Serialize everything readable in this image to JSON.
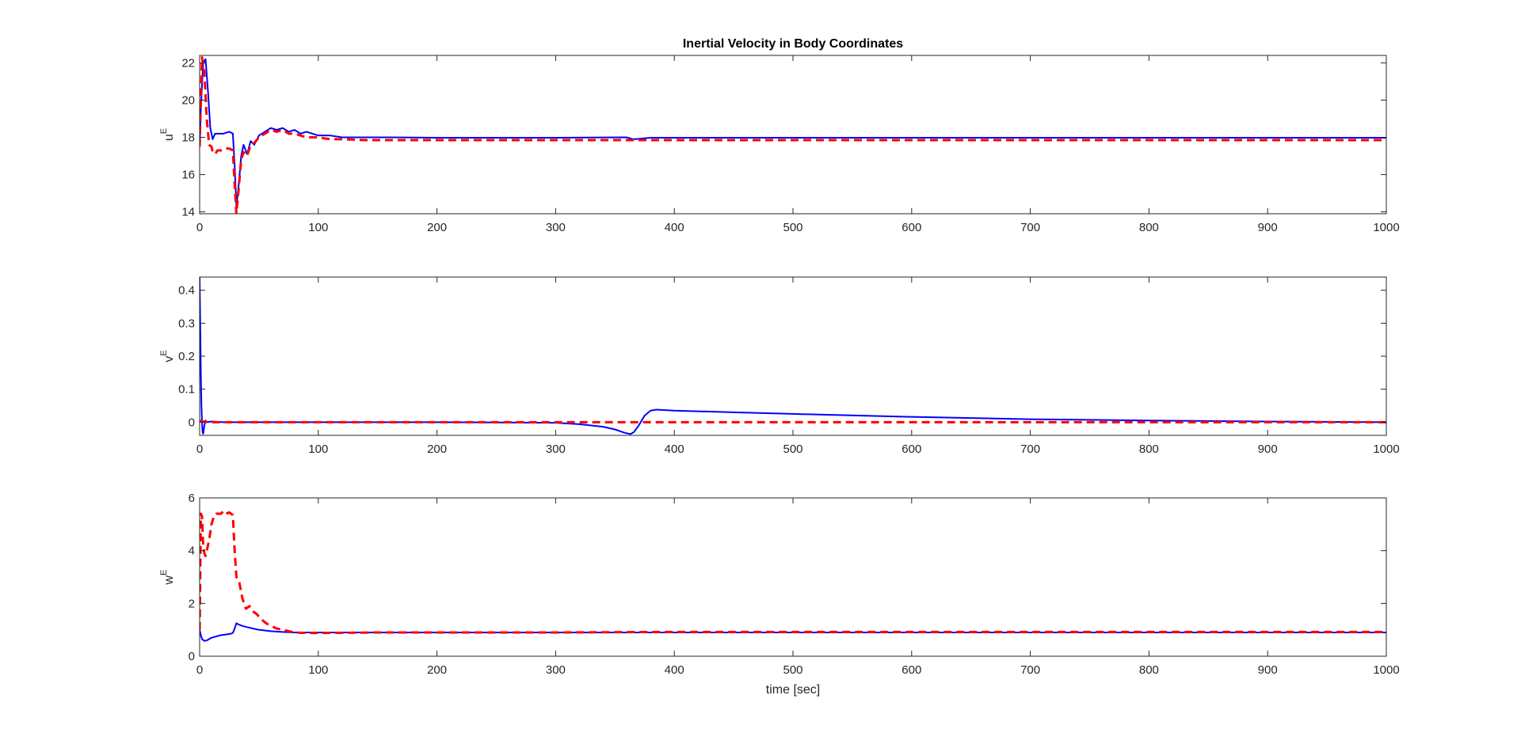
{
  "chart_data": [
    {
      "type": "line",
      "title": "Inertial Velocity in Body Coordinates",
      "ylabel": "u",
      "ylabel_sup": "E",
      "xlabel": "",
      "xlim": [
        0,
        1000
      ],
      "ylim": [
        13.9,
        22.4
      ],
      "xticks": [
        0,
        100,
        200,
        300,
        400,
        500,
        600,
        700,
        800,
        900,
        1000
      ],
      "yticks": [
        14,
        16,
        18,
        20,
        22
      ],
      "grid": false,
      "series": [
        {
          "color": "#0000ff",
          "style": "solid",
          "x": [
            0,
            1,
            3,
            5,
            7,
            9,
            11,
            13,
            16,
            20,
            25,
            28,
            29.5,
            31,
            33,
            35,
            37,
            40,
            43,
            46,
            50,
            55,
            60,
            65,
            70,
            75,
            80,
            85,
            90,
            100,
            110,
            120,
            140,
            160,
            200,
            300,
            360,
            365,
            370,
            380,
            400,
            500,
            600,
            700,
            800,
            900,
            1000
          ],
          "y": [
            17.5,
            19.5,
            22.0,
            22.2,
            20.5,
            18.5,
            17.9,
            18.2,
            18.2,
            18.2,
            18.3,
            18.2,
            16.5,
            14.3,
            15.5,
            17.0,
            17.6,
            17.1,
            17.8,
            17.6,
            18.1,
            18.3,
            18.5,
            18.4,
            18.5,
            18.3,
            18.4,
            18.2,
            18.3,
            18.1,
            18.1,
            18.0,
            18.0,
            18.0,
            17.98,
            17.98,
            18.0,
            17.9,
            17.92,
            17.98,
            17.98,
            17.98,
            17.98,
            17.98,
            17.98,
            17.98,
            17.98
          ]
        },
        {
          "color": "#ff0000",
          "style": "dashed",
          "x": [
            0,
            1,
            2,
            4,
            6,
            8,
            10,
            11,
            13,
            15,
            18,
            21,
            25,
            28,
            29.5,
            31,
            33,
            35,
            37,
            40,
            43,
            46,
            50,
            55,
            60,
            65,
            70,
            75,
            80,
            90,
            100,
            110,
            120,
            140,
            200,
            300,
            400,
            500,
            600,
            700,
            800,
            900,
            1000
          ],
          "y": [
            17.5,
            20.0,
            22.3,
            21.5,
            19.0,
            17.6,
            17.5,
            17.2,
            17.1,
            17.3,
            17.3,
            17.4,
            17.4,
            17.3,
            15.5,
            13.9,
            15.3,
            16.8,
            17.2,
            17.0,
            17.6,
            17.7,
            18.0,
            18.2,
            18.4,
            18.3,
            18.4,
            18.2,
            18.2,
            18.0,
            18.0,
            17.9,
            17.9,
            17.85,
            17.85,
            17.85,
            17.85,
            17.85,
            17.85,
            17.85,
            17.85,
            17.85,
            17.85
          ]
        }
      ]
    },
    {
      "type": "line",
      "title": "",
      "ylabel": "v",
      "ylabel_sup": "E",
      "xlabel": "",
      "xlim": [
        0,
        1000
      ],
      "ylim": [
        -0.04,
        0.44
      ],
      "xticks": [
        0,
        100,
        200,
        300,
        400,
        500,
        600,
        700,
        800,
        900,
        1000
      ],
      "yticks": [
        0,
        0.1,
        0.2,
        0.3,
        0.4
      ],
      "grid": false,
      "series": [
        {
          "color": "#0000ff",
          "style": "solid",
          "x": [
            0,
            0.5,
            1,
            1.5,
            2,
            2.5,
            3,
            4,
            5,
            6,
            8,
            10,
            20,
            50,
            100,
            200,
            300,
            320,
            340,
            350,
            358,
            363,
            366,
            370,
            375,
            380,
            385,
            400,
            450,
            500,
            600,
            700,
            800,
            900,
            1000
          ],
          "y": [
            0.44,
            0.3,
            0.15,
            0.05,
            0.0,
            -0.03,
            -0.035,
            -0.01,
            0.005,
            0.0,
            0.001,
            0.002,
            0.0,
            0.0,
            0.0,
            0.0,
            -0.002,
            -0.006,
            -0.014,
            -0.022,
            -0.032,
            -0.036,
            -0.03,
            -0.01,
            0.02,
            0.035,
            0.038,
            0.035,
            0.03,
            0.025,
            0.016,
            0.009,
            0.005,
            0.002,
            0.0
          ]
        },
        {
          "color": "#ff0000",
          "style": "dashed",
          "x": [
            0,
            1,
            2,
            3,
            5,
            10,
            20,
            100,
            300,
            500,
            700,
            900,
            1000
          ],
          "y": [
            0.002,
            0.004,
            0.003,
            0.002,
            0.001,
            0.0,
            0.0,
            0.0,
            0.0,
            0.0,
            0.0,
            0.0,
            0.0
          ]
        }
      ]
    },
    {
      "type": "line",
      "title": "",
      "ylabel": "w",
      "ylabel_sup": "E",
      "xlabel": "time [sec]",
      "xlim": [
        0,
        1000
      ],
      "ylim": [
        0,
        6
      ],
      "xticks": [
        0,
        100,
        200,
        300,
        400,
        500,
        600,
        700,
        800,
        900,
        1000
      ],
      "yticks": [
        0,
        2,
        4,
        6
      ],
      "grid": false,
      "series": [
        {
          "color": "#0000ff",
          "style": "solid",
          "x": [
            0,
            1,
            2,
            4,
            6,
            8,
            10,
            14,
            18,
            22,
            26,
            28,
            29.5,
            31,
            33,
            36,
            40,
            45,
            50,
            60,
            70,
            80,
            90,
            100,
            150,
            200,
            300,
            400,
            500,
            600,
            700,
            800,
            900,
            1000
          ],
          "y": [
            1.0,
            0.8,
            0.65,
            0.58,
            0.6,
            0.65,
            0.7,
            0.75,
            0.8,
            0.82,
            0.85,
            0.88,
            1.05,
            1.25,
            1.2,
            1.15,
            1.1,
            1.05,
            1.0,
            0.95,
            0.92,
            0.9,
            0.9,
            0.9,
            0.9,
            0.9,
            0.9,
            0.9,
            0.9,
            0.9,
            0.9,
            0.9,
            0.9,
            0.9
          ]
        },
        {
          "color": "#ff0000",
          "style": "dashed",
          "x": [
            0,
            0.5,
            1,
            2,
            3,
            4,
            5,
            6,
            8,
            10,
            12,
            14,
            16,
            18,
            20,
            22,
            25,
            28,
            29.5,
            31,
            33,
            36,
            39,
            42,
            45,
            48,
            52,
            56,
            60,
            65,
            70,
            75,
            80,
            90,
            100,
            150,
            200,
            300,
            400,
            500,
            600,
            700,
            800,
            900,
            1000
          ],
          "y": [
            1.0,
            3.0,
            5.4,
            5.3,
            4.2,
            3.9,
            3.8,
            4.0,
            4.4,
            5.0,
            5.3,
            5.4,
            5.4,
            5.4,
            5.5,
            5.4,
            5.45,
            5.35,
            4.0,
            3.0,
            2.9,
            2.2,
            1.8,
            1.9,
            1.7,
            1.6,
            1.4,
            1.25,
            1.15,
            1.05,
            1.0,
            0.95,
            0.9,
            0.88,
            0.88,
            0.9,
            0.9,
            0.9,
            0.92,
            0.92,
            0.92,
            0.92,
            0.92,
            0.92,
            0.92
          ]
        }
      ]
    }
  ]
}
